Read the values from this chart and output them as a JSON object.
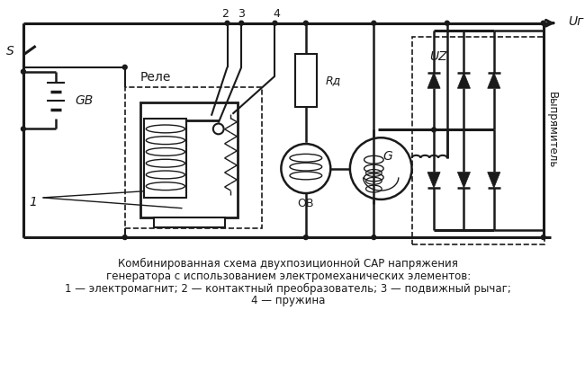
{
  "title_line1": "Комбинированная схема двухпозиционной САР напряжения",
  "title_line2": "генератора с использованием электромеханических элементов:",
  "title_line3": "1 — электромагнит; 2 — контактный преобразователь; 3 — подвижный рычаг;",
  "title_line4": "4 — пружина",
  "bg_color": "#ffffff",
  "line_color": "#1a1a1a",
  "label_Rele": "Реле",
  "label_S": "S",
  "label_GB": "GB",
  "label_1": "1",
  "label_2": "2",
  "label_3": "3",
  "label_4": "4",
  "label_Rd": "Rд",
  "label_UZ": "UZ",
  "label_OB": "ОВ",
  "label_G": "G",
  "label_Ur": "Uг",
  "label_Vypryamitel": "Выпрямитель"
}
